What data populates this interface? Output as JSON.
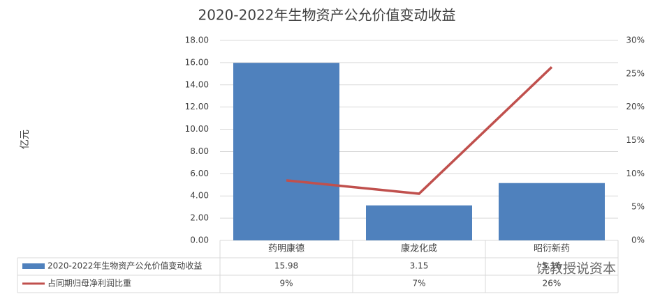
{
  "chart_data": {
    "type": "bar",
    "title": "2020-2022年生物资产公允价值变动收益",
    "y_label": "亿元",
    "categories": [
      "药明康德",
      "康龙化成",
      "昭衍新药"
    ],
    "series": [
      {
        "name": "2020-2022年生物资产公允价值变动收益",
        "type": "bar",
        "color": "#4f81bd",
        "values": [
          15.98,
          3.15,
          5.16
        ]
      },
      {
        "name": "占同期归母净利润比重",
        "type": "line",
        "axis": "y2",
        "color": "#c0504d",
        "values": [
          9,
          7,
          26
        ],
        "value_labels": [
          "9%",
          "7%",
          "26%"
        ]
      }
    ],
    "ylim": [
      0,
      18
    ],
    "yticks": [
      {
        "value": 0,
        "label": "0.00"
      },
      {
        "value": 2,
        "label": "2.00"
      },
      {
        "value": 4,
        "label": "4.00"
      },
      {
        "value": 6,
        "label": "6.00"
      },
      {
        "value": 8,
        "label": "8.00"
      },
      {
        "value": 10,
        "label": "10.00"
      },
      {
        "value": 12,
        "label": "12.00"
      },
      {
        "value": 14,
        "label": "14.00"
      },
      {
        "value": 16,
        "label": "16.00"
      },
      {
        "value": 18,
        "label": "18.00"
      }
    ],
    "y2lim": [
      0,
      30
    ],
    "y2ticks": [
      {
        "value": 0,
        "label": "0%"
      },
      {
        "value": 5,
        "label": "5%"
      },
      {
        "value": 10,
        "label": "10%"
      },
      {
        "value": 15,
        "label": "15%"
      },
      {
        "value": 20,
        "label": "20%"
      },
      {
        "value": 25,
        "label": "25%"
      },
      {
        "value": 30,
        "label": "30%"
      }
    ],
    "grid": true,
    "watermark": "饶教授说资本"
  }
}
